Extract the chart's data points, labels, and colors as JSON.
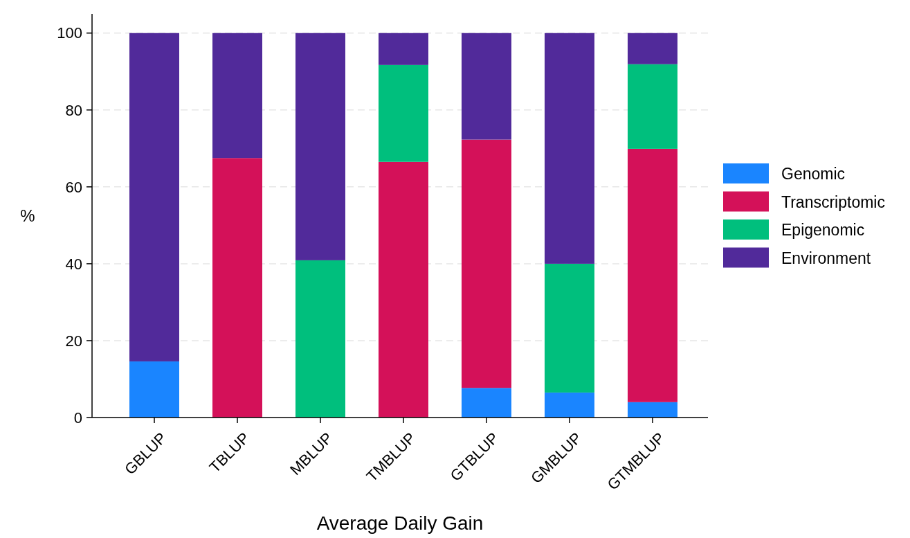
{
  "chart_data": {
    "type": "bar",
    "stacked": true,
    "xlabel": "Average Daily Gain",
    "ylabel": "%",
    "categories": [
      "GBLUP",
      "TBLUP",
      "MBLUP",
      "TMBLUP",
      "GTBLUP",
      "GMBLUP",
      "GTMBLUP"
    ],
    "series": [
      {
        "name": "Genomic",
        "color": "#1a85ff",
        "values": [
          14.6,
          0,
          0,
          0,
          7.7,
          6.5,
          4.0
        ]
      },
      {
        "name": "Transcriptomic",
        "color": "#d41159",
        "values": [
          0,
          67.5,
          0,
          66.5,
          64.6,
          0,
          65.9
        ]
      },
      {
        "name": "Epigenomic",
        "color": "#00bf7d",
        "values": [
          0,
          0,
          40.9,
          25.2,
          0,
          33.5,
          22.0
        ]
      },
      {
        "name": "Environment",
        "color": "#512a9a",
        "values": [
          85.4,
          32.5,
          59.1,
          8.3,
          27.7,
          60.0,
          8.1
        ]
      }
    ],
    "ylim": [
      0,
      105
    ],
    "yticks": [
      0,
      20,
      40,
      60,
      80,
      100
    ],
    "grid": "y",
    "legend": "right"
  }
}
